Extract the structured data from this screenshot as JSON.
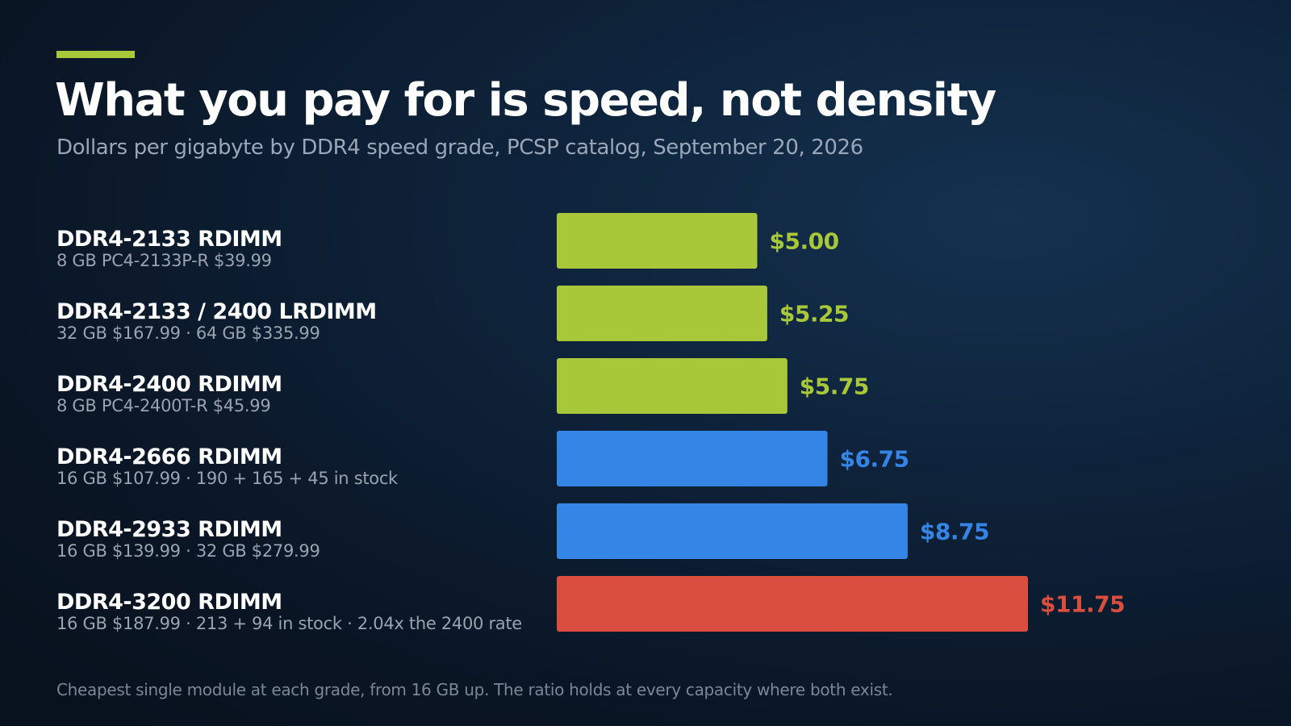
{
  "header": {
    "title": "What you pay for is speed, not density",
    "subtitle": "Dollars per gigabyte by DDR4 speed grade, PCSP catalog, September 20, 2026"
  },
  "rows": [
    {
      "name": "DDR4-2133 RDIMM",
      "detail": "8 GB PC4-2133P-R  $39.99"
    },
    {
      "name": "DDR4-2133 / 2400 LRDIMM",
      "detail": "32 GB $167.99  ·  64 GB $335.99"
    },
    {
      "name": "DDR4-2400 RDIMM",
      "detail": "8 GB PC4-2400T-R  $45.99"
    },
    {
      "name": "DDR4-2666 RDIMM",
      "detail": "16 GB $107.99  ·  190 + 165 + 45 in stock"
    },
    {
      "name": "DDR4-2933 RDIMM",
      "detail": "16 GB $139.99  ·  32 GB $279.99"
    },
    {
      "name": "DDR4-3200 RDIMM",
      "detail": "16 GB $187.99  ·  213 + 94 in stock  ·  2.04x the 2400 rate"
    }
  ],
  "chart_data": {
    "type": "bar",
    "orientation": "horizontal",
    "title": "What you pay for is speed, not density",
    "subtitle": "Dollars per gigabyte by DDR4 speed grade, PCSP catalog, September 20, 2026",
    "categories": [
      "DDR4-2133 RDIMM",
      "DDR4-2133 / 2400 LRDIMM",
      "DDR4-2400 RDIMM",
      "DDR4-2666 RDIMM",
      "DDR4-2933 RDIMM",
      "DDR4-3200 RDIMM"
    ],
    "values": [
      5.0,
      5.25,
      5.75,
      6.75,
      8.75,
      11.75
    ],
    "value_labels": [
      "$5.00",
      "$5.25",
      "$5.75",
      "$6.75",
      "$8.75",
      "$11.75"
    ],
    "colors": [
      "#a8c83a",
      "#a8c83a",
      "#a8c83a",
      "#3585e6",
      "#3585e6",
      "#d94e3f"
    ],
    "xlim": [
      0,
      11.75
    ],
    "grid": false,
    "axes_visible": false
  },
  "footnote": "Cheapest single module at each grade, from 16 GB up. The ratio holds at every capacity where both exist."
}
